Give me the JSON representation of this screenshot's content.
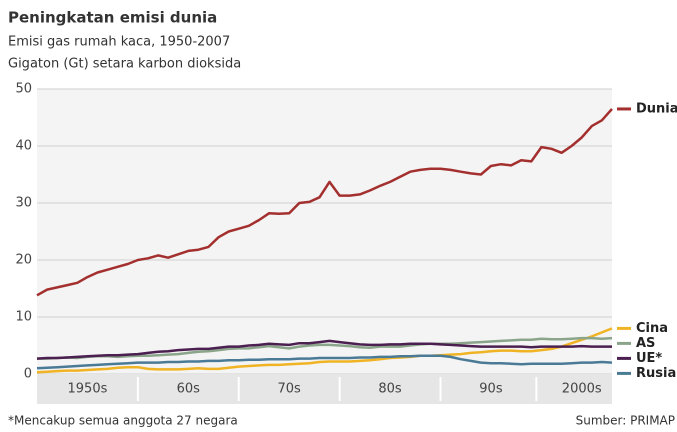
{
  "chart_data": {
    "type": "line",
    "title": "Peningkatan emisi dunia",
    "subtitle": "Emisi gas rumah kaca, 1950-2007",
    "y_label": "Gigaton (Gt) setara karbon dioksida",
    "footnote": "*Mencakup semua anggota 27 negara",
    "source": "Sumber: PRIMAP",
    "x": [
      1950,
      1951,
      1952,
      1953,
      1954,
      1955,
      1956,
      1957,
      1958,
      1959,
      1960,
      1961,
      1962,
      1963,
      1964,
      1965,
      1966,
      1967,
      1968,
      1969,
      1970,
      1971,
      1972,
      1973,
      1974,
      1975,
      1976,
      1977,
      1978,
      1979,
      1980,
      1981,
      1982,
      1983,
      1984,
      1985,
      1986,
      1987,
      1988,
      1989,
      1990,
      1991,
      1992,
      1993,
      1994,
      1995,
      1996,
      1997,
      1998,
      1999,
      2000,
      2001,
      2002,
      2003,
      2004,
      2005,
      2006,
      2007
    ],
    "xlim": [
      1950,
      2007
    ],
    "xticks": [
      {
        "value": 1955,
        "label": "1950s"
      },
      {
        "value": 1965,
        "label": "60s"
      },
      {
        "value": 1975,
        "label": "70s"
      },
      {
        "value": 1985,
        "label": "80s"
      },
      {
        "value": 1995,
        "label": "90s"
      },
      {
        "value": 2004,
        "label": "2000s"
      }
    ],
    "ylim": [
      0,
      50
    ],
    "yticks": [
      0,
      10,
      20,
      30,
      40,
      50
    ],
    "grid": true,
    "series": [
      {
        "name": "Dunia",
        "color": "#a3302e",
        "values": [
          13.8,
          14.8,
          15.2,
          15.6,
          16.0,
          17.0,
          17.8,
          18.3,
          18.8,
          19.3,
          20.0,
          20.3,
          20.8,
          20.4,
          21.0,
          21.6,
          21.8,
          22.3,
          24.0,
          25.0,
          25.5,
          26.0,
          27.0,
          28.2,
          28.1,
          28.2,
          30.0,
          30.2,
          31.0,
          33.7,
          31.3,
          31.3,
          31.5,
          32.2,
          33.0,
          33.7,
          34.6,
          35.5,
          35.8,
          36.0,
          36.0,
          35.8,
          35.5,
          35.2,
          35.0,
          36.5,
          36.8,
          36.6,
          37.5,
          37.3,
          39.8,
          39.5,
          38.8,
          40.0,
          41.5,
          43.5,
          44.5,
          46.5
        ]
      },
      {
        "name": "Cina",
        "color": "#f0b323",
        "values": [
          0.3,
          0.4,
          0.5,
          0.6,
          0.6,
          0.7,
          0.8,
          0.9,
          1.1,
          1.2,
          1.2,
          0.9,
          0.8,
          0.8,
          0.8,
          0.9,
          1.0,
          0.9,
          0.9,
          1.1,
          1.3,
          1.4,
          1.5,
          1.6,
          1.6,
          1.7,
          1.8,
          1.9,
          2.1,
          2.2,
          2.2,
          2.2,
          2.3,
          2.4,
          2.6,
          2.8,
          2.9,
          3.0,
          3.2,
          3.2,
          3.3,
          3.4,
          3.5,
          3.7,
          3.8,
          4.0,
          4.1,
          4.1,
          4.0,
          4.0,
          4.2,
          4.4,
          4.8,
          5.4,
          6.0,
          6.6,
          7.3,
          8.0
        ]
      },
      {
        "name": "AS",
        "color": "#8ba58b",
        "values": [
          2.7,
          2.7,
          2.8,
          2.9,
          2.8,
          3.0,
          3.1,
          3.1,
          3.0,
          3.1,
          3.2,
          3.2,
          3.3,
          3.4,
          3.5,
          3.7,
          3.9,
          4.0,
          4.2,
          4.4,
          4.5,
          4.5,
          4.7,
          4.9,
          4.7,
          4.5,
          4.8,
          5.0,
          5.1,
          5.1,
          5.0,
          4.9,
          4.7,
          4.6,
          4.8,
          4.8,
          4.8,
          5.0,
          5.2,
          5.3,
          5.3,
          5.3,
          5.4,
          5.5,
          5.6,
          5.7,
          5.8,
          5.9,
          6.0,
          6.0,
          6.2,
          6.1,
          6.1,
          6.2,
          6.3,
          6.3,
          6.2,
          6.3
        ]
      },
      {
        "name": "UE*",
        "color": "#4b1f4f",
        "values": [
          2.7,
          2.8,
          2.8,
          2.9,
          3.0,
          3.1,
          3.2,
          3.3,
          3.3,
          3.4,
          3.5,
          3.7,
          3.9,
          4.0,
          4.2,
          4.3,
          4.4,
          4.4,
          4.6,
          4.8,
          4.8,
          5.0,
          5.1,
          5.3,
          5.2,
          5.1,
          5.4,
          5.4,
          5.6,
          5.8,
          5.6,
          5.4,
          5.2,
          5.1,
          5.1,
          5.2,
          5.2,
          5.3,
          5.3,
          5.3,
          5.2,
          5.1,
          5.0,
          4.9,
          4.8,
          4.8,
          4.8,
          4.8,
          4.8,
          4.7,
          4.8,
          4.8,
          4.8,
          4.8,
          4.9,
          4.8,
          4.8,
          4.8
        ]
      },
      {
        "name": "Rusia",
        "color": "#4a7a96",
        "values": [
          1.0,
          1.1,
          1.2,
          1.3,
          1.4,
          1.5,
          1.6,
          1.7,
          1.8,
          1.9,
          2.0,
          2.0,
          2.0,
          2.1,
          2.1,
          2.2,
          2.2,
          2.3,
          2.3,
          2.4,
          2.4,
          2.5,
          2.5,
          2.6,
          2.6,
          2.6,
          2.7,
          2.7,
          2.8,
          2.8,
          2.8,
          2.8,
          2.9,
          2.9,
          3.0,
          3.0,
          3.1,
          3.1,
          3.2,
          3.2,
          3.2,
          3.0,
          2.6,
          2.3,
          2.0,
          1.9,
          1.9,
          1.8,
          1.7,
          1.8,
          1.8,
          1.8,
          1.8,
          1.9,
          2.0,
          2.0,
          2.1,
          2.0
        ]
      }
    ]
  }
}
